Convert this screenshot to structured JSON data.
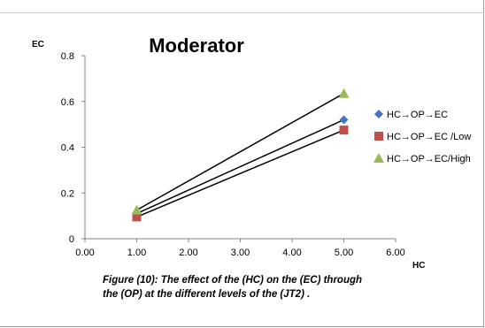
{
  "chart_data": {
    "type": "scatter",
    "title": "Moderator",
    "xlabel": "HC",
    "ylabel": "EC",
    "xlim": [
      0,
      6
    ],
    "ylim": [
      0,
      0.8
    ],
    "x_ticks": [
      "0.00",
      "1.00",
      "2.00",
      "3.00",
      "4.00",
      "5.00",
      "6.00"
    ],
    "y_ticks": [
      "0",
      "0.2",
      "0.4",
      "0.6",
      "0.8"
    ],
    "grid": false,
    "legend_position": "right",
    "trendlines": true,
    "series": [
      {
        "name": "HC→OP→EC",
        "marker": "diamond",
        "color": "#4472C4",
        "points": [
          [
            1,
            0.11
          ],
          [
            5,
            0.52
          ]
        ]
      },
      {
        "name": "HC→OP→EC /Low",
        "marker": "square",
        "color": "#C0504D",
        "points": [
          [
            1,
            0.095
          ],
          [
            5,
            0.475
          ]
        ]
      },
      {
        "name": "HC→OP→EC/High",
        "marker": "triangle",
        "color": "#9BBB59",
        "points": [
          [
            1,
            0.125
          ],
          [
            5,
            0.635
          ]
        ]
      }
    ]
  },
  "caption": "Figure (10): The effect of the (HC) on the (EC)  through the (OP) at the different levels of the (JT2) ."
}
